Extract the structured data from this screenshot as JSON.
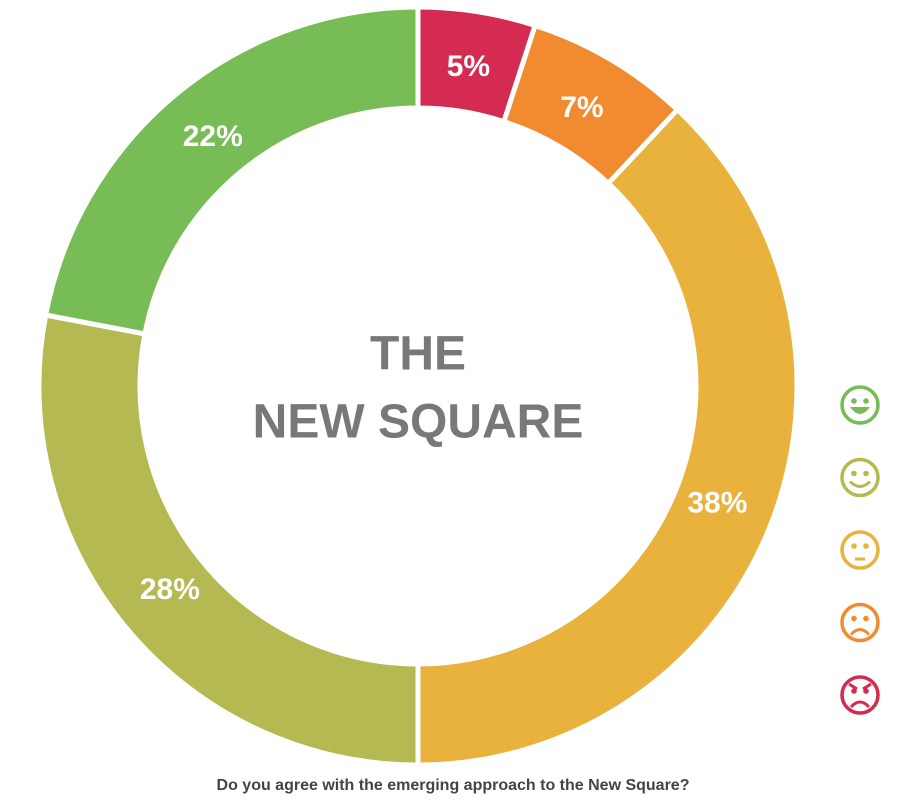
{
  "chart_data": {
    "type": "donut",
    "title": "Do you agree with the emerging approach to the New Square?",
    "center_label": [
      "THE",
      "NEW SQUARE"
    ],
    "values": [
      5,
      7,
      38,
      28,
      22
    ],
    "value_labels": [
      "5%",
      "7%",
      "38%",
      "28%",
      "22%"
    ],
    "colors": [
      "#d52a52",
      "#f28a30",
      "#e9b23c",
      "#b5b951",
      "#77bc55"
    ]
  }
}
